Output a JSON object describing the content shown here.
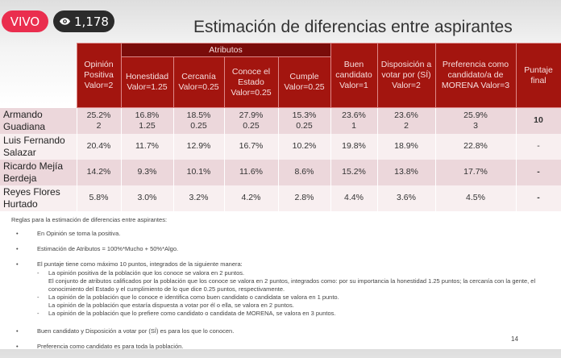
{
  "overlay": {
    "live_label": "VIVO",
    "views": "1,178",
    "views_icon": "eye-icon"
  },
  "title": "Estimación de diferencias entre aspirantes",
  "table": {
    "group_header": "Atributos",
    "headers": [
      "Opinión Positiva Valor=2",
      "Honestidad Valor=1.25",
      "Cercanía Valor=0.25",
      "Conoce el Estado Valor=0.25",
      "Cumple Valor=0.25",
      "Buen candidato Valor=1",
      "Disposición a votar por (SÍ) Valor=2",
      "Preferencia como candidato/a de MORENA Valor=3",
      "Puntaje final"
    ],
    "rows": [
      {
        "name": "Armando Guadiana",
        "cells": [
          "25.2%\n2",
          "16.8%\n1.25",
          "18.5%\n0.25",
          "27.9%\n0.25",
          "15.3%\n0.25",
          "23.6%\n1",
          "23.6%\n2",
          "25.9%\n3",
          "10"
        ]
      },
      {
        "name": "Luis Fernando Salazar",
        "cells": [
          "20.4%",
          "11.7%",
          "12.9%",
          "16.7%",
          "10.2%",
          "19.8%",
          "18.9%",
          "22.8%",
          "-"
        ]
      },
      {
        "name": "Ricardo Mejía Berdeja",
        "cells": [
          "14.2%",
          "9.3%",
          "10.1%",
          "11.6%",
          "8.6%",
          "15.2%",
          "13.8%",
          "17.7%",
          "-"
        ]
      },
      {
        "name": "Reyes Flores Hurtado",
        "cells": [
          "5.8%",
          "3.0%",
          "3.2%",
          "4.2%",
          "2.8%",
          "4.4%",
          "3.6%",
          "4.5%",
          "-"
        ]
      }
    ]
  },
  "notes": {
    "heading": "Reglas para la estimación de diferencias entre aspirantes:",
    "b1": "En Opinión se toma la positiva.",
    "b2": "Estimación de Atributos = 100%*Mucho + 50%*Algo.",
    "b3": "El puntaje tiene como máximo 10 puntos, integrados de la siguiente manera:",
    "s1": "La opinión positiva de la población que los conoce se valora en 2 puntos.",
    "s2": "El conjunto de atributos calificados por la población que los conoce se valora en 2 puntos, integrados como: por su importancia la honestidad 1.25 puntos; la cercanía con la gente, el conocimiento del Estado y el cumplimiento de lo que dice 0.25 puntos, respectivamente.",
    "s3": "La opinión de la población que lo conoce e identifica como buen candidato o candidata se valora en 1 punto.",
    "s4": "La opinión de la población que estaría dispuesta a votar por él o ella, se valora en 2 puntos.",
    "s5": "La opinión de la población que lo prefiere como candidato o candidata de MORENA, se valora en 3 puntos.",
    "b4": "Buen candidato y Disposición a votar por (SÍ) es para los que lo conocen.",
    "b5": "Preferencia como candidato es para toda la población."
  },
  "page_number": "14",
  "colors": {
    "header": "#a3150f",
    "group_header": "#7a0c0a",
    "live": "#ea2e4e"
  }
}
